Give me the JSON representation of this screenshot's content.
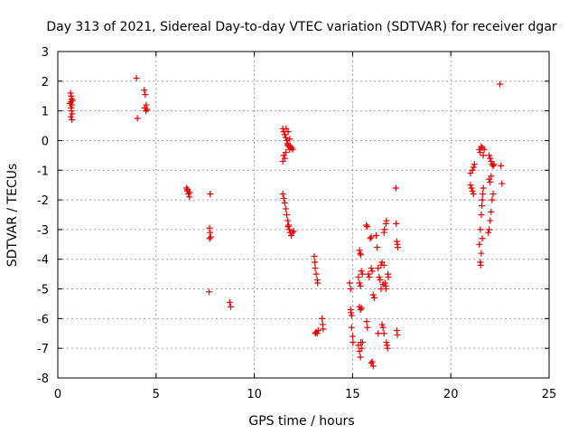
{
  "chart_data": {
    "type": "scatter",
    "title": "Day 313 of 2021, Sidereal Day-to-day VTEC variation (SDTVAR) for receiver dgar",
    "xlabel": "GPS time / hours",
    "ylabel": "SDTVAR / TECUs",
    "xlim": [
      0,
      25
    ],
    "ylim": [
      -8,
      3
    ],
    "xticks": [
      "0",
      "5",
      "10",
      "15",
      "20",
      "25"
    ],
    "yticks": [
      "3",
      "2",
      "1",
      "0",
      "-1",
      "-2",
      "-3",
      "-4",
      "-5",
      "-6",
      "-7",
      "-8"
    ],
    "grid": true,
    "marker": "+",
    "color": "#e00000",
    "series": [
      {
        "name": "dgar",
        "points": [
          [
            0.65,
            1.6
          ],
          [
            0.68,
            1.5
          ],
          [
            0.7,
            1.4
          ],
          [
            0.66,
            1.3
          ],
          [
            0.72,
            1.2
          ],
          [
            0.68,
            1.1
          ],
          [
            0.7,
            1.0
          ],
          [
            0.73,
            0.9
          ],
          [
            0.66,
            0.8
          ],
          [
            0.72,
            0.7
          ],
          [
            0.75,
            1.35
          ],
          [
            0.62,
            1.25
          ],
          [
            4.0,
            2.1
          ],
          [
            4.05,
            0.75
          ],
          [
            4.4,
            1.7
          ],
          [
            4.45,
            1.55
          ],
          [
            4.5,
            1.2
          ],
          [
            4.42,
            1.1
          ],
          [
            4.48,
            1.0
          ],
          [
            4.55,
            1.05
          ],
          [
            6.55,
            -1.6
          ],
          [
            6.6,
            -1.7
          ],
          [
            6.65,
            -1.8
          ],
          [
            6.7,
            -1.9
          ],
          [
            6.6,
            -1.65
          ],
          [
            6.7,
            -1.75
          ],
          [
            7.75,
            -1.8
          ],
          [
            7.72,
            -2.95
          ],
          [
            7.75,
            -3.1
          ],
          [
            7.78,
            -3.25
          ],
          [
            7.72,
            -3.3
          ],
          [
            7.7,
            -5.1
          ],
          [
            8.75,
            -5.45
          ],
          [
            8.8,
            -5.6
          ],
          [
            11.45,
            0.4
          ],
          [
            11.5,
            0.3
          ],
          [
            11.55,
            0.2
          ],
          [
            11.6,
            0.1
          ],
          [
            11.62,
            0.4
          ],
          [
            11.65,
            0.0
          ],
          [
            11.7,
            -0.1
          ],
          [
            11.72,
            0.3
          ],
          [
            11.75,
            -0.2
          ],
          [
            11.8,
            -0.3
          ],
          [
            11.85,
            -0.2
          ],
          [
            11.9,
            -0.25
          ],
          [
            11.95,
            -0.3
          ],
          [
            11.5,
            -0.5
          ],
          [
            11.45,
            -0.7
          ],
          [
            11.55,
            -0.6
          ],
          [
            11.6,
            -0.4
          ],
          [
            11.7,
            -0.15
          ],
          [
            11.8,
            0.05
          ],
          [
            11.45,
            -1.8
          ],
          [
            11.5,
            -1.95
          ],
          [
            11.55,
            -2.1
          ],
          [
            11.6,
            -2.3
          ],
          [
            11.65,
            -2.5
          ],
          [
            11.7,
            -2.7
          ],
          [
            11.72,
            -2.9
          ],
          [
            11.78,
            -3.0
          ],
          [
            11.82,
            -3.1
          ],
          [
            11.88,
            -3.2
          ],
          [
            11.95,
            -3.1
          ],
          [
            12.0,
            -3.05
          ],
          [
            11.75,
            -2.85
          ],
          [
            13.05,
            -3.9
          ],
          [
            13.08,
            -4.1
          ],
          [
            13.1,
            -4.3
          ],
          [
            13.15,
            -4.5
          ],
          [
            13.2,
            -4.7
          ],
          [
            13.22,
            -4.8
          ],
          [
            13.1,
            -6.5
          ],
          [
            13.15,
            -6.45
          ],
          [
            13.2,
            -6.5
          ],
          [
            13.25,
            -6.4
          ],
          [
            13.45,
            -6.0
          ],
          [
            13.48,
            -6.2
          ],
          [
            13.5,
            -6.35
          ],
          [
            14.85,
            -4.8
          ],
          [
            14.9,
            -5.0
          ],
          [
            14.9,
            -5.7
          ],
          [
            14.92,
            -5.8
          ],
          [
            14.95,
            -5.9
          ],
          [
            14.95,
            -6.3
          ],
          [
            15.0,
            -6.6
          ],
          [
            15.02,
            -6.8
          ],
          [
            15.35,
            -3.7
          ],
          [
            15.38,
            -3.8
          ],
          [
            15.42,
            -3.85
          ],
          [
            15.3,
            -4.6
          ],
          [
            15.35,
            -4.8
          ],
          [
            15.4,
            -4.9
          ],
          [
            15.45,
            -4.4
          ],
          [
            15.5,
            -4.5
          ],
          [
            15.35,
            -5.6
          ],
          [
            15.4,
            -5.7
          ],
          [
            15.45,
            -5.65
          ],
          [
            15.3,
            -6.9
          ],
          [
            15.35,
            -7.1
          ],
          [
            15.4,
            -7.3
          ],
          [
            15.42,
            -6.8
          ],
          [
            15.45,
            -7.0
          ],
          [
            15.5,
            -6.8
          ],
          [
            15.7,
            -2.85
          ],
          [
            15.75,
            -2.9
          ],
          [
            15.72,
            -6.1
          ],
          [
            15.75,
            -6.3
          ],
          [
            15.8,
            -4.5
          ],
          [
            15.85,
            -4.6
          ],
          [
            15.9,
            -3.3
          ],
          [
            15.95,
            -3.25
          ],
          [
            15.95,
            -4.3
          ],
          [
            16.0,
            -4.4
          ],
          [
            16.05,
            -5.2
          ],
          [
            16.1,
            -5.3
          ],
          [
            15.95,
            -7.5
          ],
          [
            16.0,
            -7.45
          ],
          [
            16.05,
            -7.6
          ],
          [
            16.2,
            -3.2
          ],
          [
            16.25,
            -3.6
          ],
          [
            16.3,
            -4.3
          ],
          [
            16.3,
            -6.5
          ],
          [
            16.35,
            -4.6
          ],
          [
            16.4,
            -4.7
          ],
          [
            16.45,
            -4.2
          ],
          [
            16.5,
            -4.1
          ],
          [
            16.5,
            -6.2
          ],
          [
            16.55,
            -6.3
          ],
          [
            16.6,
            -6.5
          ],
          [
            16.6,
            -3.1
          ],
          [
            16.62,
            -3.0
          ],
          [
            16.7,
            -2.8
          ],
          [
            16.72,
            -2.7
          ],
          [
            16.65,
            -4.8
          ],
          [
            16.68,
            -4.9
          ],
          [
            16.7,
            -5.0
          ],
          [
            16.72,
            -6.8
          ],
          [
            16.75,
            -6.9
          ],
          [
            16.78,
            -7.0
          ],
          [
            16.8,
            -4.5
          ],
          [
            16.82,
            -4.6
          ],
          [
            16.6,
            -4.2
          ],
          [
            16.45,
            -5.0
          ],
          [
            16.55,
            -4.85
          ],
          [
            17.2,
            -1.6
          ],
          [
            17.22,
            -2.8
          ],
          [
            17.25,
            -3.4
          ],
          [
            17.28,
            -3.5
          ],
          [
            17.3,
            -3.6
          ],
          [
            17.25,
            -6.4
          ],
          [
            17.28,
            -6.55
          ],
          [
            21.0,
            -1.5
          ],
          [
            21.05,
            -1.6
          ],
          [
            21.1,
            -1.7
          ],
          [
            21.15,
            -1.8
          ],
          [
            21.1,
            -1.0
          ],
          [
            21.15,
            -0.9
          ],
          [
            21.2,
            -0.8
          ],
          [
            21.0,
            -1.1
          ],
          [
            21.45,
            -0.3
          ],
          [
            21.5,
            -0.4
          ],
          [
            21.55,
            -0.2
          ],
          [
            21.6,
            -0.25
          ],
          [
            21.65,
            -0.5
          ],
          [
            21.7,
            -0.3
          ],
          [
            21.45,
            -3.5
          ],
          [
            21.5,
            -3.0
          ],
          [
            21.5,
            -4.1
          ],
          [
            21.52,
            -4.2
          ],
          [
            21.55,
            -2.5
          ],
          [
            21.58,
            -2.2
          ],
          [
            21.6,
            -2.0
          ],
          [
            21.62,
            -1.8
          ],
          [
            21.65,
            -1.6
          ],
          [
            21.55,
            -3.8
          ],
          [
            21.6,
            -3.3
          ],
          [
            21.95,
            -0.5
          ],
          [
            22.0,
            -0.6
          ],
          [
            22.05,
            -0.7
          ],
          [
            22.1,
            -0.8
          ],
          [
            22.15,
            -0.85
          ],
          [
            22.2,
            -0.8
          ],
          [
            21.95,
            -1.3
          ],
          [
            22.0,
            -1.4
          ],
          [
            22.05,
            -1.2
          ],
          [
            21.9,
            -3.1
          ],
          [
            21.95,
            -3.0
          ],
          [
            22.0,
            -2.7
          ],
          [
            22.05,
            -2.4
          ],
          [
            22.1,
            -2.0
          ],
          [
            22.15,
            -1.8
          ],
          [
            22.5,
            1.9
          ],
          [
            22.55,
            -0.85
          ],
          [
            22.6,
            -1.45
          ]
        ]
      }
    ]
  }
}
